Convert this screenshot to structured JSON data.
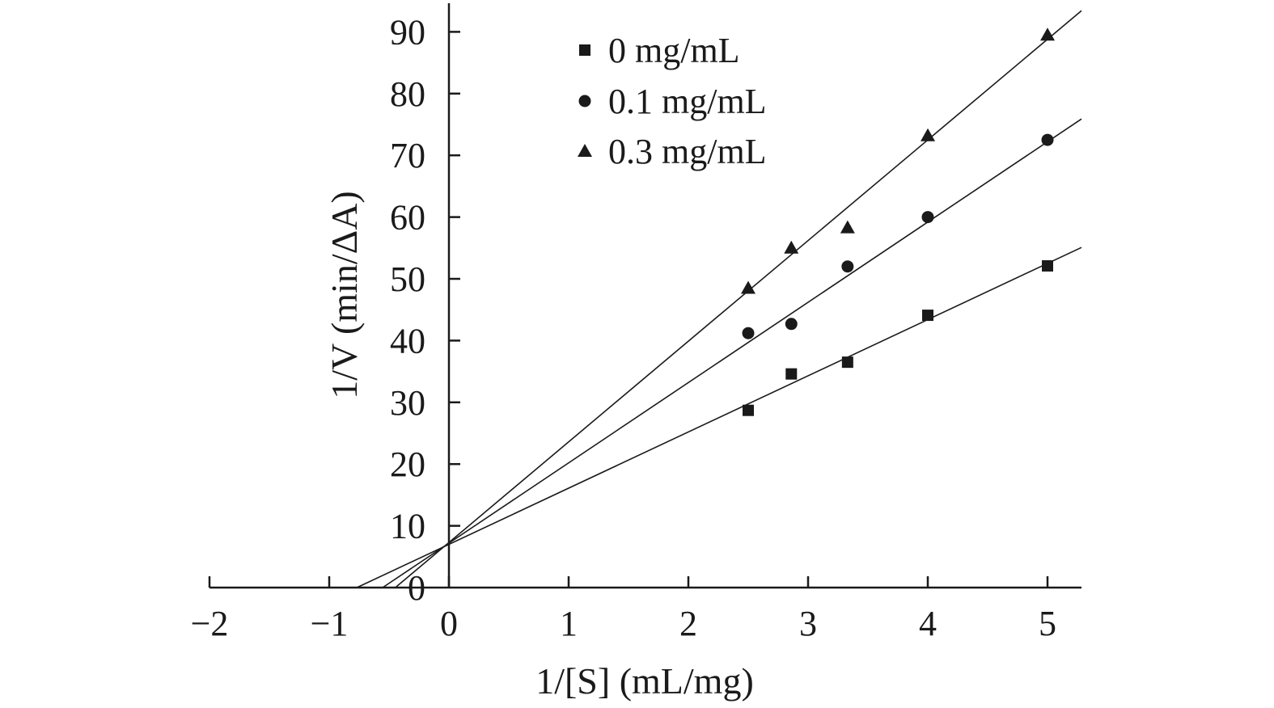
{
  "chart_data": {
    "type": "scatter",
    "title": "",
    "xlabel": "1/[S] (mL/mg)",
    "ylabel": "1/V (min/ΔA)",
    "xlim": [
      -2,
      5.3
    ],
    "ylim": [
      0,
      95
    ],
    "x_ticks": [
      -2,
      -1,
      0,
      1,
      2,
      3,
      4,
      5
    ],
    "x_tick_labels": [
      "−2",
      "−1",
      "0",
      "1",
      "2",
      "3",
      "4",
      "5"
    ],
    "y_ticks": [
      0,
      10,
      20,
      30,
      40,
      50,
      60,
      70,
      80,
      90
    ],
    "y_tick_labels": [
      "0",
      "10",
      "20",
      "30",
      "40",
      "50",
      "60",
      "70",
      "80",
      "90"
    ],
    "grid": false,
    "legend_position": "top-center",
    "series": [
      {
        "name": "0 mg/mL",
        "marker": "square",
        "x": [
          2.5,
          2.86,
          3.33,
          4.0,
          5.0
        ],
        "y": [
          28.7,
          34.6,
          36.5,
          44.1,
          52.1
        ],
        "fit": {
          "slope": 9.1,
          "intercept": 7.0
        }
      },
      {
        "name": "0.1 mg/mL",
        "marker": "circle",
        "x": [
          2.5,
          2.86,
          3.33,
          4.0,
          5.0
        ],
        "y": [
          41.2,
          42.7,
          52.0,
          60.0,
          72.5
        ],
        "fit": {
          "slope": 13.0,
          "intercept": 7.2
        }
      },
      {
        "name": "0.3 mg/mL",
        "marker": "triangle",
        "x": [
          2.5,
          2.86,
          3.33,
          4.0,
          5.0
        ],
        "y": [
          48.5,
          55.0,
          58.3,
          73.2,
          89.5
        ],
        "fit": {
          "slope": 16.3,
          "intercept": 7.3
        }
      }
    ]
  }
}
